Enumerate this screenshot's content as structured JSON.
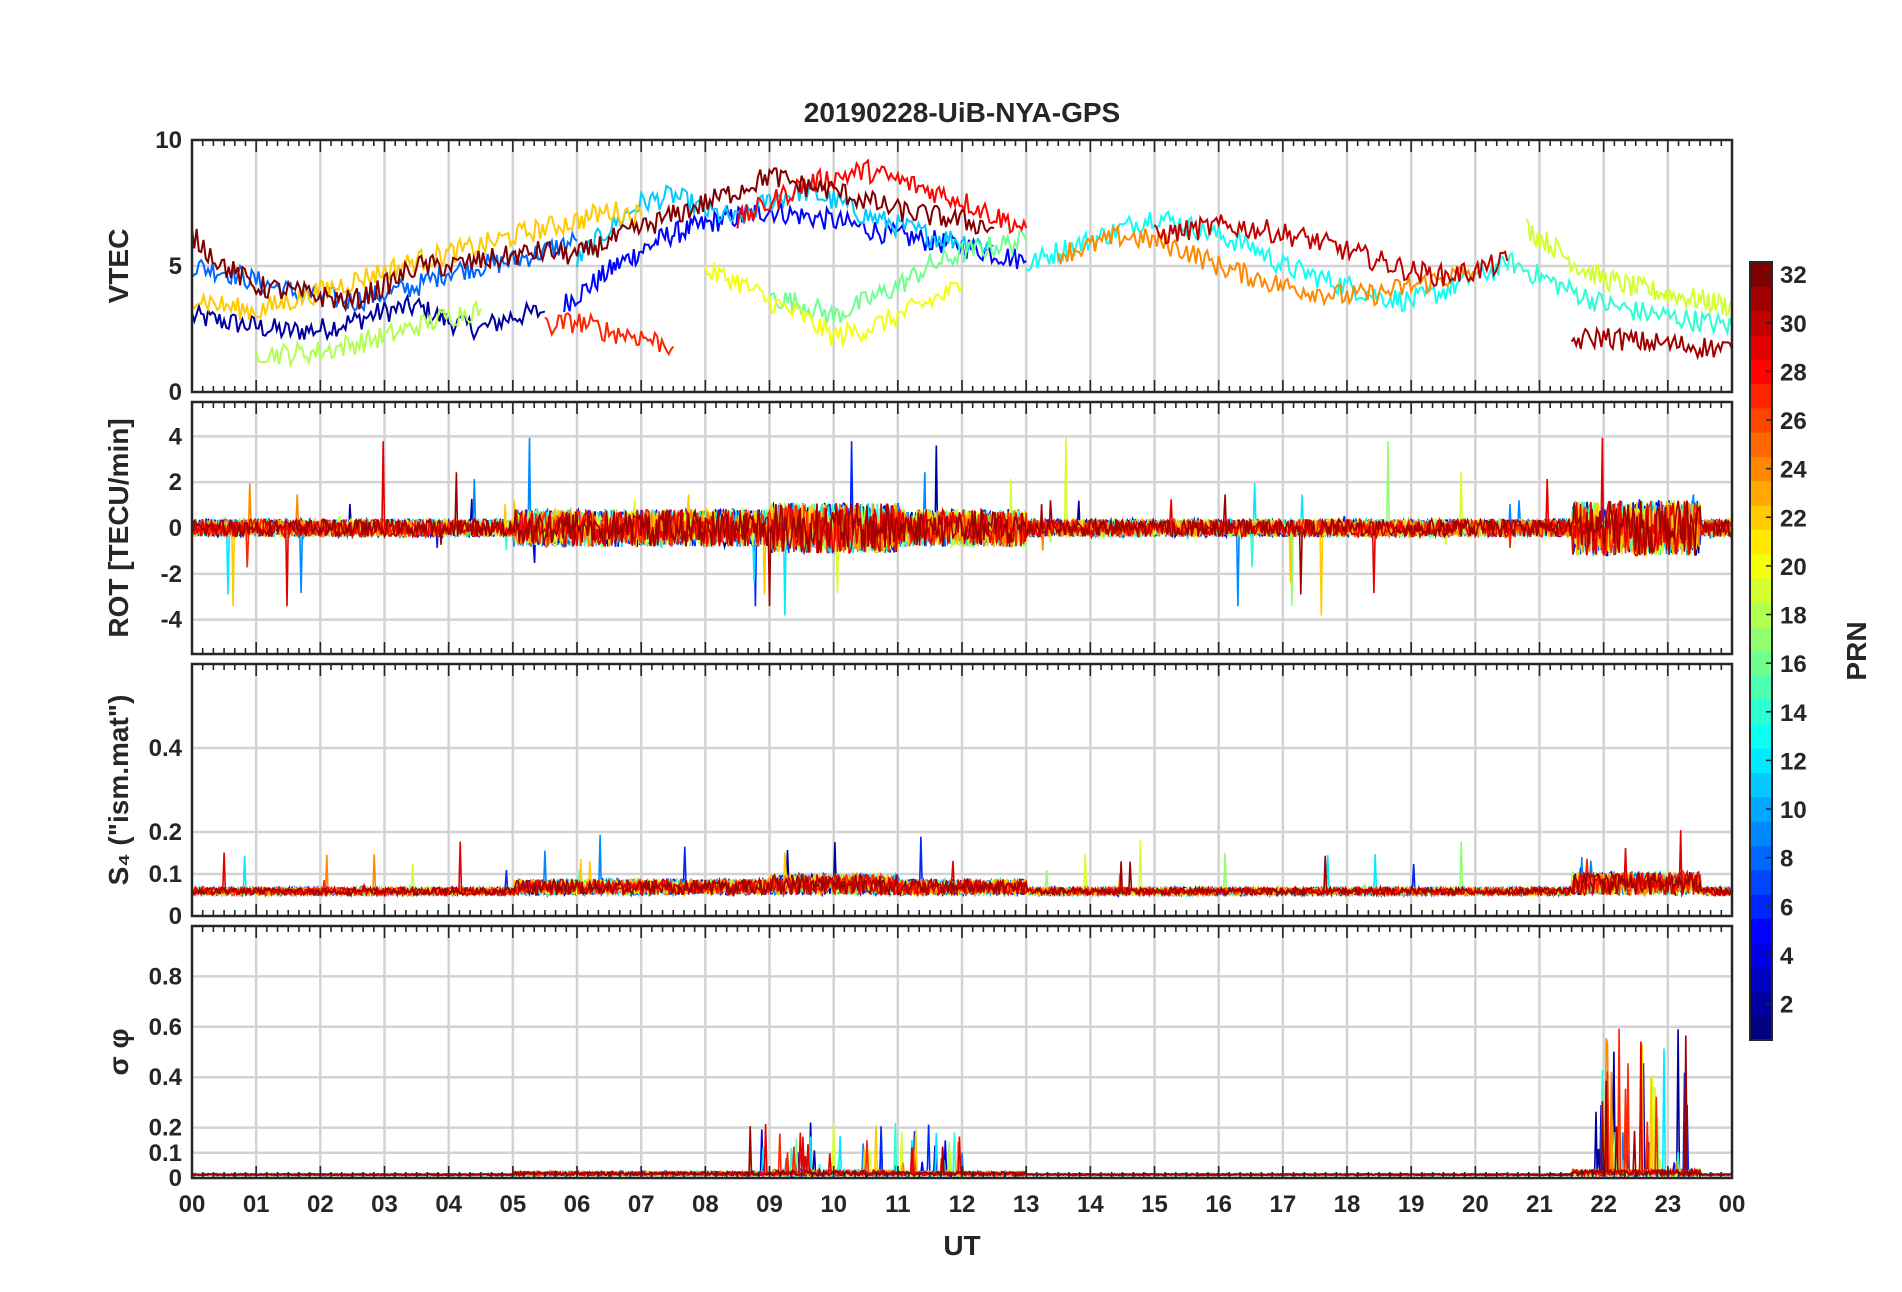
{
  "chart_data": {
    "type": "line",
    "title": "20190228-UiB-NYA-GPS",
    "xlabel": "UT",
    "x_ticks": [
      "00",
      "01",
      "02",
      "03",
      "04",
      "05",
      "06",
      "07",
      "08",
      "09",
      "10",
      "11",
      "12",
      "13",
      "14",
      "15",
      "16",
      "17",
      "18",
      "19",
      "20",
      "21",
      "22",
      "23",
      "00"
    ],
    "xlim": [
      0,
      24
    ],
    "grid": true,
    "colorbar": {
      "label": "PRN",
      "colormap": "jet",
      "range": [
        1,
        32
      ],
      "ticks": [
        "2",
        "4",
        "6",
        "8",
        "10",
        "12",
        "14",
        "16",
        "18",
        "20",
        "22",
        "24",
        "26",
        "28",
        "30",
        "32"
      ]
    },
    "panels": [
      {
        "ylabel": "VTEC",
        "ylim": [
          0,
          10
        ],
        "yticks": [
          "0",
          "5",
          "10"
        ],
        "series": [
          {
            "prn": 2,
            "x": [
              0,
              0.5,
              1,
              1.5,
              2,
              2.5,
              3,
              3.5,
              4,
              4.5,
              5,
              5.5
            ],
            "y": [
              3.0,
              2.8,
              2.6,
              2.4,
              2.5,
              2.8,
              3.2,
              3.4,
              2.8,
              2.5,
              3.0,
              3.2
            ]
          },
          {
            "prn": 5,
            "x": [
              5.8,
              6.2,
              6.6,
              7.0,
              7.4,
              7.8,
              8.2,
              8.6,
              9.0,
              9.5,
              10,
              10.5,
              11,
              11.5,
              12,
              12.5,
              13
            ],
            "y": [
              3.5,
              4.2,
              5.0,
              5.6,
              6.2,
              6.5,
              6.8,
              7.0,
              7.2,
              7.0,
              6.8,
              6.5,
              6.2,
              6.0,
              5.8,
              5.5,
              5.2
            ]
          },
          {
            "prn": 8,
            "x": [
              0,
              0.5,
              1,
              1.5,
              2,
              2.5,
              3,
              3.5,
              4,
              4.5,
              5,
              5.5,
              6
            ],
            "y": [
              5.0,
              4.8,
              4.4,
              4.0,
              3.8,
              3.6,
              3.9,
              4.2,
              4.8,
              5.0,
              5.2,
              5.6,
              6.0
            ]
          },
          {
            "prn": 11,
            "x": [
              6,
              6.5,
              7,
              7.5,
              8,
              8.5,
              9,
              9.5,
              10,
              10.5,
              11,
              11.5,
              12,
              12.5
            ],
            "y": [
              5.2,
              6.5,
              7.5,
              7.8,
              7.2,
              6.8,
              7.6,
              8.0,
              7.6,
              7.0,
              6.6,
              6.2,
              6.0,
              5.8
            ]
          },
          {
            "prn": 13,
            "x": [
              13,
              13.5,
              14,
              14.5,
              15,
              15.5,
              16,
              16.5,
              17,
              17.5,
              18,
              18.5,
              19,
              19.5,
              20,
              20.5
            ],
            "y": [
              5.0,
              5.6,
              6.0,
              6.5,
              7.0,
              6.6,
              6.2,
              5.8,
              5.0,
              4.6,
              4.2,
              3.8,
              3.6,
              4.0,
              4.6,
              5.0
            ]
          },
          {
            "prn": 14,
            "x": [
              20.5,
              21,
              21.5,
              22,
              22.5,
              23,
              23.5,
              24
            ],
            "y": [
              5.2,
              4.6,
              4.0,
              3.5,
              3.2,
              3.0,
              2.8,
              2.6
            ]
          },
          {
            "prn": 16,
            "x": [
              9,
              9.5,
              10,
              10.5,
              11,
              11.5,
              12,
              12.5,
              13
            ],
            "y": [
              3.8,
              3.5,
              3.0,
              3.6,
              4.2,
              5.0,
              5.5,
              5.8,
              6.0
            ]
          },
          {
            "prn": 18,
            "x": [
              1,
              1.5,
              2,
              2.5,
              3,
              3.5,
              4,
              4.5
            ],
            "y": [
              1.6,
              1.5,
              1.6,
              1.9,
              2.2,
              2.6,
              3.0,
              3.3
            ]
          },
          {
            "prn": 19,
            "x": [
              20.8,
              21.2,
              21.6,
              22,
              22.4,
              22.8,
              23.2,
              23.6,
              24
            ],
            "y": [
              6.5,
              5.8,
              5.0,
              4.5,
              4.2,
              4.0,
              3.8,
              3.6,
              3.4
            ]
          },
          {
            "prn": 20,
            "x": [
              8,
              8.5,
              9,
              9.5,
              10,
              10.5,
              11,
              11.5,
              12
            ],
            "y": [
              4.8,
              4.4,
              3.6,
              3.0,
              2.2,
              2.5,
              3.0,
              3.6,
              4.2
            ]
          },
          {
            "prn": 22,
            "x": [
              0,
              0.5,
              1,
              1.5,
              2,
              2.5,
              3,
              3.5,
              4,
              4.5,
              5,
              5.5,
              6,
              6.5,
              7
            ],
            "y": [
              3.8,
              3.4,
              3.2,
              3.6,
              4.0,
              4.4,
              4.8,
              5.2,
              5.5,
              5.8,
              6.2,
              6.5,
              6.8,
              7.2,
              7.0
            ]
          },
          {
            "prn": 24,
            "x": [
              13.5,
              14,
              14.5,
              15,
              15.5,
              16,
              16.5,
              17,
              17.5,
              18,
              18.5,
              19,
              19.5,
              20
            ],
            "y": [
              5.5,
              5.8,
              6.2,
              6.0,
              5.6,
              5.0,
              4.6,
              4.2,
              4.0,
              3.8,
              3.9,
              4.2,
              4.5,
              4.8
            ]
          },
          {
            "prn": 27,
            "x": [
              5.5,
              6,
              6.5,
              7,
              7.5
            ],
            "y": [
              2.6,
              2.8,
              2.4,
              2.2,
              1.8
            ]
          },
          {
            "prn": 28,
            "x": [
              8.5,
              9,
              9.5,
              10,
              10.5,
              11,
              11.5,
              12,
              12.5,
              13
            ],
            "y": [
              6.8,
              7.5,
              8.2,
              8.5,
              8.8,
              8.4,
              8.0,
              7.6,
              7.0,
              6.5
            ]
          },
          {
            "prn": 30,
            "x": [
              15,
              15.5,
              16,
              16.5,
              17,
              17.5,
              18,
              18.5,
              19,
              19.5,
              20,
              20.5
            ],
            "y": [
              6.2,
              6.4,
              6.6,
              6.5,
              6.3,
              6.0,
              5.6,
              5.2,
              4.8,
              4.6,
              4.8,
              5.2
            ]
          },
          {
            "prn": 31,
            "x": [
              21.5,
              22,
              22.5,
              23,
              23.5,
              24
            ],
            "y": [
              2.0,
              2.2,
              2.0,
              1.9,
              1.8,
              1.7
            ]
          },
          {
            "prn": 32,
            "x": [
              0,
              0.5,
              1,
              1.5,
              2,
              2.5,
              3,
              3.5,
              4,
              4.5,
              5,
              5.5,
              6,
              6.5,
              7,
              7.5,
              8,
              8.5,
              9,
              9.5,
              10,
              10.5,
              11,
              11.5,
              12,
              12.5
            ],
            "y": [
              6.2,
              5.0,
              4.2,
              4.0,
              3.8,
              3.6,
              4.2,
              5.0,
              5.0,
              5.2,
              5.4,
              5.6,
              5.4,
              6.0,
              6.5,
              7.0,
              7.5,
              8.0,
              8.6,
              8.2,
              8.0,
              7.6,
              7.2,
              7.0,
              6.8,
              6.5
            ]
          }
        ]
      },
      {
        "ylabel": "ROT [TECU/min]",
        "ylim": [
          -5.5,
          5.5
        ],
        "yticks": [
          "-4",
          "-2",
          "0",
          "2",
          "4"
        ]
      },
      {
        "ylabel": "S₄ (\"ism.mat\")",
        "ylim": [
          0,
          0.6
        ],
        "yticks": [
          "0",
          "0.1",
          "0.2",
          "0.4"
        ]
      },
      {
        "ylabel": "σ φ",
        "ylim": [
          0,
          1
        ],
        "yticks": [
          "0",
          "0.1",
          "0.2",
          "0.4",
          "0.6",
          "0.8"
        ]
      }
    ]
  }
}
